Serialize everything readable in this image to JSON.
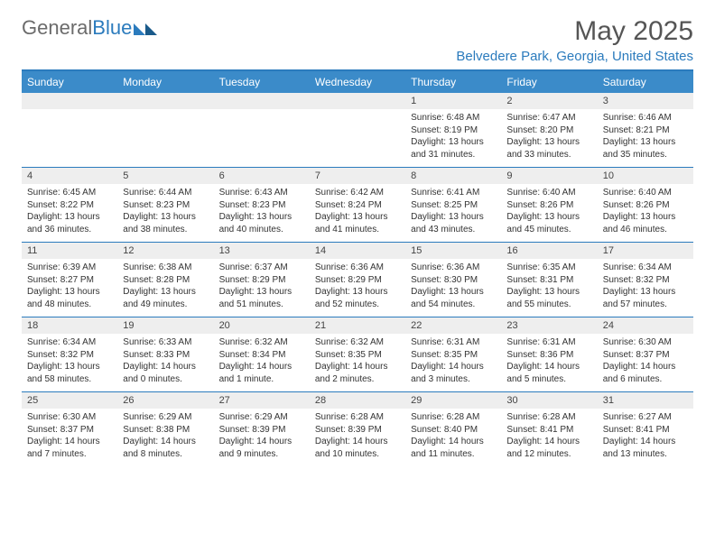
{
  "logo": {
    "text_gray": "General",
    "text_blue": "Blue"
  },
  "title": "May 2025",
  "location": "Belvedere Park, Georgia, United States",
  "colors": {
    "brand_blue": "#3b8bc9",
    "accent_blue": "#2b7bbd",
    "header_gray": "#6b6b6b",
    "strip_gray": "#eeeeee",
    "text": "#333333"
  },
  "weekdays": [
    "Sunday",
    "Monday",
    "Tuesday",
    "Wednesday",
    "Thursday",
    "Friday",
    "Saturday"
  ],
  "weeks": [
    [
      null,
      null,
      null,
      null,
      {
        "n": "1",
        "sr": "Sunrise: 6:48 AM",
        "ss": "Sunset: 8:19 PM",
        "dl": "Daylight: 13 hours and 31 minutes."
      },
      {
        "n": "2",
        "sr": "Sunrise: 6:47 AM",
        "ss": "Sunset: 8:20 PM",
        "dl": "Daylight: 13 hours and 33 minutes."
      },
      {
        "n": "3",
        "sr": "Sunrise: 6:46 AM",
        "ss": "Sunset: 8:21 PM",
        "dl": "Daylight: 13 hours and 35 minutes."
      }
    ],
    [
      {
        "n": "4",
        "sr": "Sunrise: 6:45 AM",
        "ss": "Sunset: 8:22 PM",
        "dl": "Daylight: 13 hours and 36 minutes."
      },
      {
        "n": "5",
        "sr": "Sunrise: 6:44 AM",
        "ss": "Sunset: 8:23 PM",
        "dl": "Daylight: 13 hours and 38 minutes."
      },
      {
        "n": "6",
        "sr": "Sunrise: 6:43 AM",
        "ss": "Sunset: 8:23 PM",
        "dl": "Daylight: 13 hours and 40 minutes."
      },
      {
        "n": "7",
        "sr": "Sunrise: 6:42 AM",
        "ss": "Sunset: 8:24 PM",
        "dl": "Daylight: 13 hours and 41 minutes."
      },
      {
        "n": "8",
        "sr": "Sunrise: 6:41 AM",
        "ss": "Sunset: 8:25 PM",
        "dl": "Daylight: 13 hours and 43 minutes."
      },
      {
        "n": "9",
        "sr": "Sunrise: 6:40 AM",
        "ss": "Sunset: 8:26 PM",
        "dl": "Daylight: 13 hours and 45 minutes."
      },
      {
        "n": "10",
        "sr": "Sunrise: 6:40 AM",
        "ss": "Sunset: 8:26 PM",
        "dl": "Daylight: 13 hours and 46 minutes."
      }
    ],
    [
      {
        "n": "11",
        "sr": "Sunrise: 6:39 AM",
        "ss": "Sunset: 8:27 PM",
        "dl": "Daylight: 13 hours and 48 minutes."
      },
      {
        "n": "12",
        "sr": "Sunrise: 6:38 AM",
        "ss": "Sunset: 8:28 PM",
        "dl": "Daylight: 13 hours and 49 minutes."
      },
      {
        "n": "13",
        "sr": "Sunrise: 6:37 AM",
        "ss": "Sunset: 8:29 PM",
        "dl": "Daylight: 13 hours and 51 minutes."
      },
      {
        "n": "14",
        "sr": "Sunrise: 6:36 AM",
        "ss": "Sunset: 8:29 PM",
        "dl": "Daylight: 13 hours and 52 minutes."
      },
      {
        "n": "15",
        "sr": "Sunrise: 6:36 AM",
        "ss": "Sunset: 8:30 PM",
        "dl": "Daylight: 13 hours and 54 minutes."
      },
      {
        "n": "16",
        "sr": "Sunrise: 6:35 AM",
        "ss": "Sunset: 8:31 PM",
        "dl": "Daylight: 13 hours and 55 minutes."
      },
      {
        "n": "17",
        "sr": "Sunrise: 6:34 AM",
        "ss": "Sunset: 8:32 PM",
        "dl": "Daylight: 13 hours and 57 minutes."
      }
    ],
    [
      {
        "n": "18",
        "sr": "Sunrise: 6:34 AM",
        "ss": "Sunset: 8:32 PM",
        "dl": "Daylight: 13 hours and 58 minutes."
      },
      {
        "n": "19",
        "sr": "Sunrise: 6:33 AM",
        "ss": "Sunset: 8:33 PM",
        "dl": "Daylight: 14 hours and 0 minutes."
      },
      {
        "n": "20",
        "sr": "Sunrise: 6:32 AM",
        "ss": "Sunset: 8:34 PM",
        "dl": "Daylight: 14 hours and 1 minute."
      },
      {
        "n": "21",
        "sr": "Sunrise: 6:32 AM",
        "ss": "Sunset: 8:35 PM",
        "dl": "Daylight: 14 hours and 2 minutes."
      },
      {
        "n": "22",
        "sr": "Sunrise: 6:31 AM",
        "ss": "Sunset: 8:35 PM",
        "dl": "Daylight: 14 hours and 3 minutes."
      },
      {
        "n": "23",
        "sr": "Sunrise: 6:31 AM",
        "ss": "Sunset: 8:36 PM",
        "dl": "Daylight: 14 hours and 5 minutes."
      },
      {
        "n": "24",
        "sr": "Sunrise: 6:30 AM",
        "ss": "Sunset: 8:37 PM",
        "dl": "Daylight: 14 hours and 6 minutes."
      }
    ],
    [
      {
        "n": "25",
        "sr": "Sunrise: 6:30 AM",
        "ss": "Sunset: 8:37 PM",
        "dl": "Daylight: 14 hours and 7 minutes."
      },
      {
        "n": "26",
        "sr": "Sunrise: 6:29 AM",
        "ss": "Sunset: 8:38 PM",
        "dl": "Daylight: 14 hours and 8 minutes."
      },
      {
        "n": "27",
        "sr": "Sunrise: 6:29 AM",
        "ss": "Sunset: 8:39 PM",
        "dl": "Daylight: 14 hours and 9 minutes."
      },
      {
        "n": "28",
        "sr": "Sunrise: 6:28 AM",
        "ss": "Sunset: 8:39 PM",
        "dl": "Daylight: 14 hours and 10 minutes."
      },
      {
        "n": "29",
        "sr": "Sunrise: 6:28 AM",
        "ss": "Sunset: 8:40 PM",
        "dl": "Daylight: 14 hours and 11 minutes."
      },
      {
        "n": "30",
        "sr": "Sunrise: 6:28 AM",
        "ss": "Sunset: 8:41 PM",
        "dl": "Daylight: 14 hours and 12 minutes."
      },
      {
        "n": "31",
        "sr": "Sunrise: 6:27 AM",
        "ss": "Sunset: 8:41 PM",
        "dl": "Daylight: 14 hours and 13 minutes."
      }
    ]
  ]
}
